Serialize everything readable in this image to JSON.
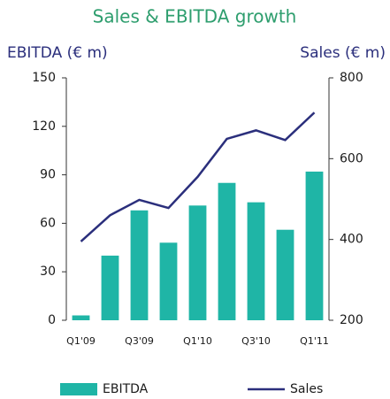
{
  "chart_data": {
    "type": "bar",
    "title": "Sales & EBITDA growth",
    "ylabel": "EBITDA (€ m)",
    "y2label": "Sales (€ m)",
    "categories": [
      "Q1'09",
      null,
      "Q3'09",
      null,
      "Q1'10",
      null,
      "Q3'10",
      null,
      "Q1'11"
    ],
    "series": [
      {
        "name": "EBITDA",
        "type": "bar",
        "color": "#1fb5a6",
        "values": [
          3,
          40,
          68,
          48,
          71,
          85,
          73,
          56,
          92
        ]
      },
      {
        "name": "Sales",
        "type": "line",
        "axis": "y2",
        "color": "#2b2f7c",
        "values": [
          395,
          460,
          498,
          478,
          555,
          649,
          670,
          646,
          714
        ]
      }
    ],
    "ylim": [
      0,
      150
    ],
    "yticks": [
      0,
      30,
      60,
      90,
      120,
      150
    ],
    "y2lim": [
      200,
      800
    ],
    "y2ticks": [
      200,
      400,
      600,
      800
    ],
    "grid": false,
    "legend": "bottom"
  }
}
